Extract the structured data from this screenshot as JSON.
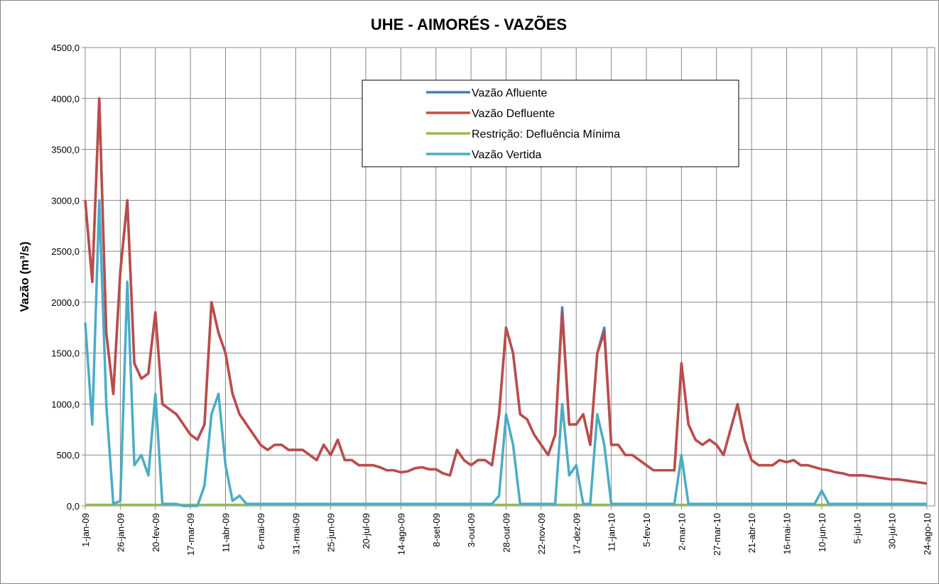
{
  "chart_data": {
    "type": "line",
    "title": "UHE - AIMORÉS - VAZÕES",
    "y_label": "Vazão (m³/s)",
    "categories": [
      "1-jan-09",
      null,
      null,
      null,
      null,
      "26-jan-09",
      null,
      null,
      null,
      null,
      "20-fev-09",
      null,
      null,
      null,
      null,
      "17-mar-09",
      null,
      null,
      null,
      null,
      "11-abr-09",
      null,
      null,
      null,
      null,
      "6-mai-09",
      null,
      null,
      null,
      null,
      "31-mai-09",
      null,
      null,
      null,
      null,
      "25-jun-09",
      null,
      null,
      null,
      null,
      "20-jul-09",
      null,
      null,
      null,
      null,
      "14-ago-09",
      null,
      null,
      null,
      null,
      "8-set-09",
      null,
      null,
      null,
      null,
      "3-out-09",
      null,
      null,
      null,
      null,
      "28-out-09",
      null,
      null,
      null,
      null,
      "22-nov-09",
      null,
      null,
      null,
      null,
      "17-dez-09",
      null,
      null,
      null,
      null,
      "11-jan-10",
      null,
      null,
      null,
      null,
      "5-fev-10",
      null,
      null,
      null,
      null,
      "2-mar-10",
      null,
      null,
      null,
      null,
      "27-mar-10",
      null,
      null,
      null,
      null,
      "21-abr-10",
      null,
      null,
      null,
      null,
      "16-mai-10",
      null,
      null,
      null,
      null,
      "10-jun-10",
      null,
      null,
      null,
      null,
      "5-jul-10",
      null,
      null,
      null,
      null,
      "30-jul-10",
      null,
      null,
      null,
      null,
      "24-ago-10"
    ],
    "series": [
      {
        "name": "Vazão Afluente",
        "color": "#4a7ebb",
        "values": [
          3000,
          2200,
          4000,
          1700,
          1100,
          2300,
          3000,
          1400,
          1250,
          1300,
          1900,
          1000,
          950,
          900,
          800,
          700,
          650,
          800,
          2000,
          1700,
          1500,
          1100,
          900,
          800,
          700,
          600,
          550,
          600,
          600,
          550,
          550,
          550,
          500,
          450,
          600,
          500,
          650,
          450,
          450,
          400,
          400,
          400,
          380,
          350,
          350,
          330,
          340,
          370,
          380,
          360,
          360,
          320,
          300,
          550,
          450,
          400,
          450,
          450,
          400,
          900,
          1750,
          1500,
          900,
          850,
          700,
          600,
          500,
          700,
          1950,
          800,
          800,
          900,
          600,
          1500,
          1750,
          600,
          600,
          500,
          500,
          450,
          400,
          350,
          350,
          350,
          350,
          1400,
          800,
          650,
          600,
          650,
          600,
          500,
          750,
          1000,
          650,
          450,
          400,
          400,
          400,
          450,
          430,
          450,
          400,
          400,
          380,
          360,
          350,
          330,
          320,
          300,
          300,
          300,
          290,
          280,
          270,
          260,
          260,
          250,
          240,
          230,
          220
        ]
      },
      {
        "name": "Vazão Defluente",
        "color": "#be4b48",
        "values": [
          3000,
          2200,
          4000,
          1700,
          1100,
          2300,
          3000,
          1400,
          1250,
          1300,
          1900,
          1000,
          950,
          900,
          800,
          700,
          650,
          800,
          2000,
          1700,
          1500,
          1100,
          900,
          800,
          700,
          600,
          550,
          600,
          600,
          550,
          550,
          550,
          500,
          450,
          600,
          500,
          650,
          450,
          450,
          400,
          400,
          400,
          380,
          350,
          350,
          330,
          340,
          370,
          380,
          360,
          360,
          320,
          300,
          550,
          450,
          400,
          450,
          450,
          400,
          900,
          1750,
          1500,
          900,
          850,
          700,
          600,
          500,
          700,
          1900,
          800,
          800,
          900,
          600,
          1500,
          1700,
          600,
          600,
          500,
          500,
          450,
          400,
          350,
          350,
          350,
          350,
          1400,
          800,
          650,
          600,
          650,
          600,
          500,
          750,
          1000,
          650,
          450,
          400,
          400,
          400,
          450,
          430,
          450,
          400,
          400,
          380,
          360,
          350,
          330,
          320,
          300,
          300,
          300,
          290,
          280,
          270,
          260,
          260,
          250,
          240,
          230,
          220
        ]
      },
      {
        "name": "Restrição: Defluência Mínima",
        "color": "#98b954",
        "values": [
          10,
          10,
          10,
          10,
          10,
          10,
          10,
          10,
          10,
          10,
          10,
          10,
          10,
          10,
          10,
          10,
          10,
          10,
          10,
          10,
          10,
          10,
          10,
          10,
          10,
          10,
          10,
          10,
          10,
          10,
          10,
          10,
          10,
          10,
          10,
          10,
          10,
          10,
          10,
          10,
          10,
          10,
          10,
          10,
          10,
          10,
          10,
          10,
          10,
          10,
          10,
          10,
          10,
          10,
          10,
          10,
          10,
          10,
          10,
          10,
          10,
          10,
          10,
          10,
          10,
          10,
          10,
          10,
          10,
          10,
          10,
          10,
          10,
          10,
          10,
          10,
          10,
          10,
          10,
          10,
          10,
          10,
          10,
          10,
          10,
          10,
          10,
          10,
          10,
          10,
          10,
          10,
          10,
          10,
          10,
          10,
          10,
          10,
          10,
          10,
          10,
          10,
          10,
          10,
          10,
          10,
          10,
          10,
          10,
          10,
          10,
          10,
          10,
          10,
          10,
          10,
          10,
          10,
          10,
          10,
          10
        ]
      },
      {
        "name": "Vazão Vertida",
        "color": "#4bacc6",
        "values": [
          1800,
          800,
          3000,
          1000,
          20,
          50,
          2200,
          400,
          500,
          300,
          1100,
          20,
          20,
          20,
          0,
          0,
          0,
          200,
          900,
          1100,
          400,
          50,
          100,
          20,
          20,
          20,
          20,
          20,
          20,
          20,
          20,
          20,
          20,
          20,
          20,
          20,
          20,
          20,
          20,
          20,
          20,
          20,
          20,
          20,
          20,
          20,
          20,
          20,
          20,
          20,
          20,
          20,
          20,
          20,
          20,
          20,
          20,
          20,
          20,
          100,
          900,
          600,
          20,
          20,
          20,
          20,
          20,
          20,
          1000,
          300,
          400,
          20,
          20,
          900,
          600,
          20,
          20,
          20,
          20,
          20,
          20,
          20,
          20,
          20,
          20,
          500,
          20,
          20,
          20,
          20,
          20,
          20,
          20,
          20,
          20,
          20,
          20,
          20,
          20,
          20,
          20,
          20,
          20,
          20,
          20,
          150,
          20,
          20,
          20,
          20,
          20,
          20,
          20,
          20,
          20,
          20,
          20,
          20,
          20,
          20,
          20
        ]
      }
    ],
    "ylim": [
      0,
      4500
    ],
    "yticks": [
      {
        "value": 0,
        "label": "0,0"
      },
      {
        "value": 500,
        "label": "500,0"
      },
      {
        "value": 1000,
        "label": "1000,0"
      },
      {
        "value": 1500,
        "label": "1500,0"
      },
      {
        "value": 2000,
        "label": "2000,0"
      },
      {
        "value": 2500,
        "label": "2500,0"
      },
      {
        "value": 3000,
        "label": "3000,0"
      },
      {
        "value": 3500,
        "label": "3500,0"
      },
      {
        "value": 4000,
        "label": "4000,0"
      },
      {
        "value": 4500,
        "label": "4500,0"
      }
    ],
    "grid": true
  }
}
